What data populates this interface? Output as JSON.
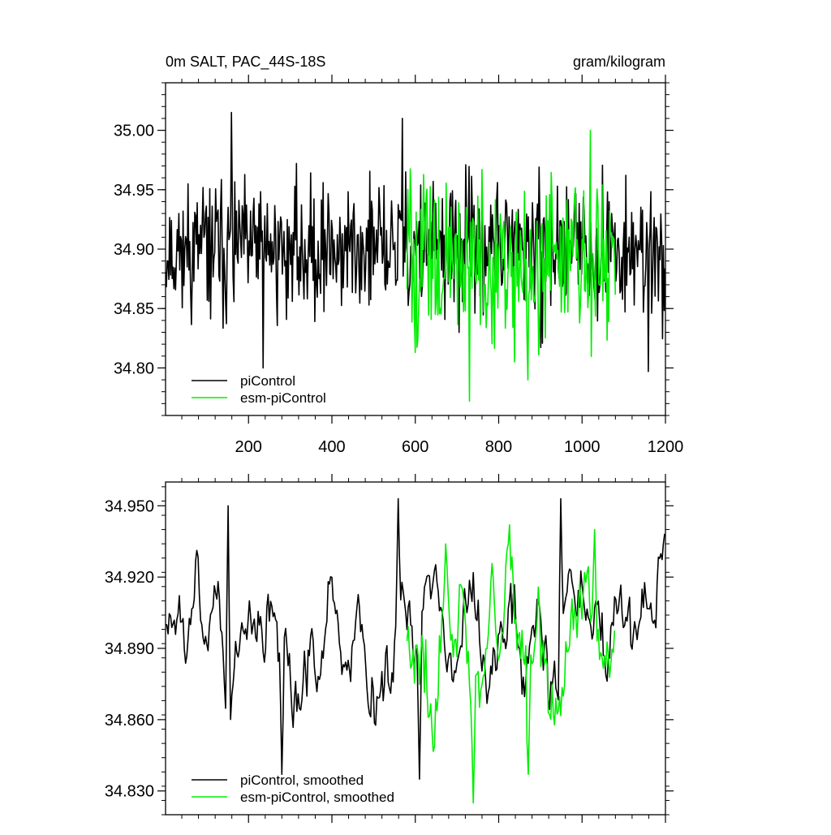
{
  "header": {
    "left_title": "0m SALT, PAC_44S-18S",
    "right_units": "gram/kilogram"
  },
  "colors": {
    "piControl": "#000000",
    "esm_piControl": "#00ee00",
    "axes": "#000000"
  },
  "chart_data": [
    {
      "type": "line",
      "title": "0m SALT, PAC_44S-18S",
      "units": "gram/kilogram",
      "xlabel": "",
      "ylabel": "",
      "xlim": [
        1,
        1200
      ],
      "ylim": [
        34.76,
        35.04
      ],
      "x_tick_values": [
        200,
        400,
        600,
        800,
        1000,
        1200
      ],
      "x_tick_labels": [
        "200",
        "400",
        "600",
        "800",
        "1000",
        "1200"
      ],
      "y_tick_values": [
        34.8,
        34.85,
        34.9,
        34.95,
        35.0
      ],
      "y_tick_labels": [
        "34.80",
        "34.85",
        "34.90",
        "34.95",
        "35.00"
      ],
      "grid": false,
      "legend_position": "bottom-left",
      "series": [
        {
          "name": "piControl",
          "x_range": [
            1,
            1200
          ],
          "mean": 34.9,
          "approx_min": 34.8,
          "approx_max": 35.015,
          "peaks": [
            [
              160,
              35.015
            ],
            [
              570,
              35.01
            ],
            [
              235,
              34.8
            ],
            [
              1160,
              34.797
            ]
          ]
        },
        {
          "name": "esm-piControl",
          "x_range": [
            580,
            1080
          ],
          "mean": 34.89,
          "approx_min": 34.772,
          "approx_max": 35.0,
          "peaks": [
            [
              1020,
              35.0
            ],
            [
              730,
              34.772
            ],
            [
              870,
              34.79
            ]
          ]
        }
      ]
    },
    {
      "type": "line",
      "title": "",
      "xlabel": "",
      "ylabel": "",
      "xlim": [
        1,
        1200
      ],
      "ylim": [
        34.82,
        34.96
      ],
      "x_tick_values": [
        200,
        400,
        600,
        800,
        1000,
        1200
      ],
      "x_tick_labels": [],
      "y_tick_values": [
        34.83,
        34.86,
        34.89,
        34.92,
        34.95
      ],
      "y_tick_labels": [
        "34.830",
        "34.860",
        "34.890",
        "34.920",
        "34.950"
      ],
      "grid": false,
      "legend_position": "bottom-left",
      "series": [
        {
          "name": "piControl, smoothed",
          "x_range": [
            1,
            1200
          ],
          "mean": 34.895,
          "approx_min": 34.835,
          "approx_max": 34.953,
          "peaks": [
            [
              560,
              34.953
            ],
            [
              950,
              34.953
            ],
            [
              150,
              34.95
            ],
            [
              280,
              34.837
            ],
            [
              610,
              34.835
            ]
          ]
        },
        {
          "name": "esm-piControl, smoothed",
          "x_range": [
            580,
            1080
          ],
          "mean": 34.893,
          "approx_min": 34.825,
          "approx_max": 34.943,
          "peaks": [
            [
              1030,
              34.94
            ],
            [
              740,
              34.825
            ],
            [
              870,
              34.837
            ]
          ]
        }
      ]
    }
  ]
}
